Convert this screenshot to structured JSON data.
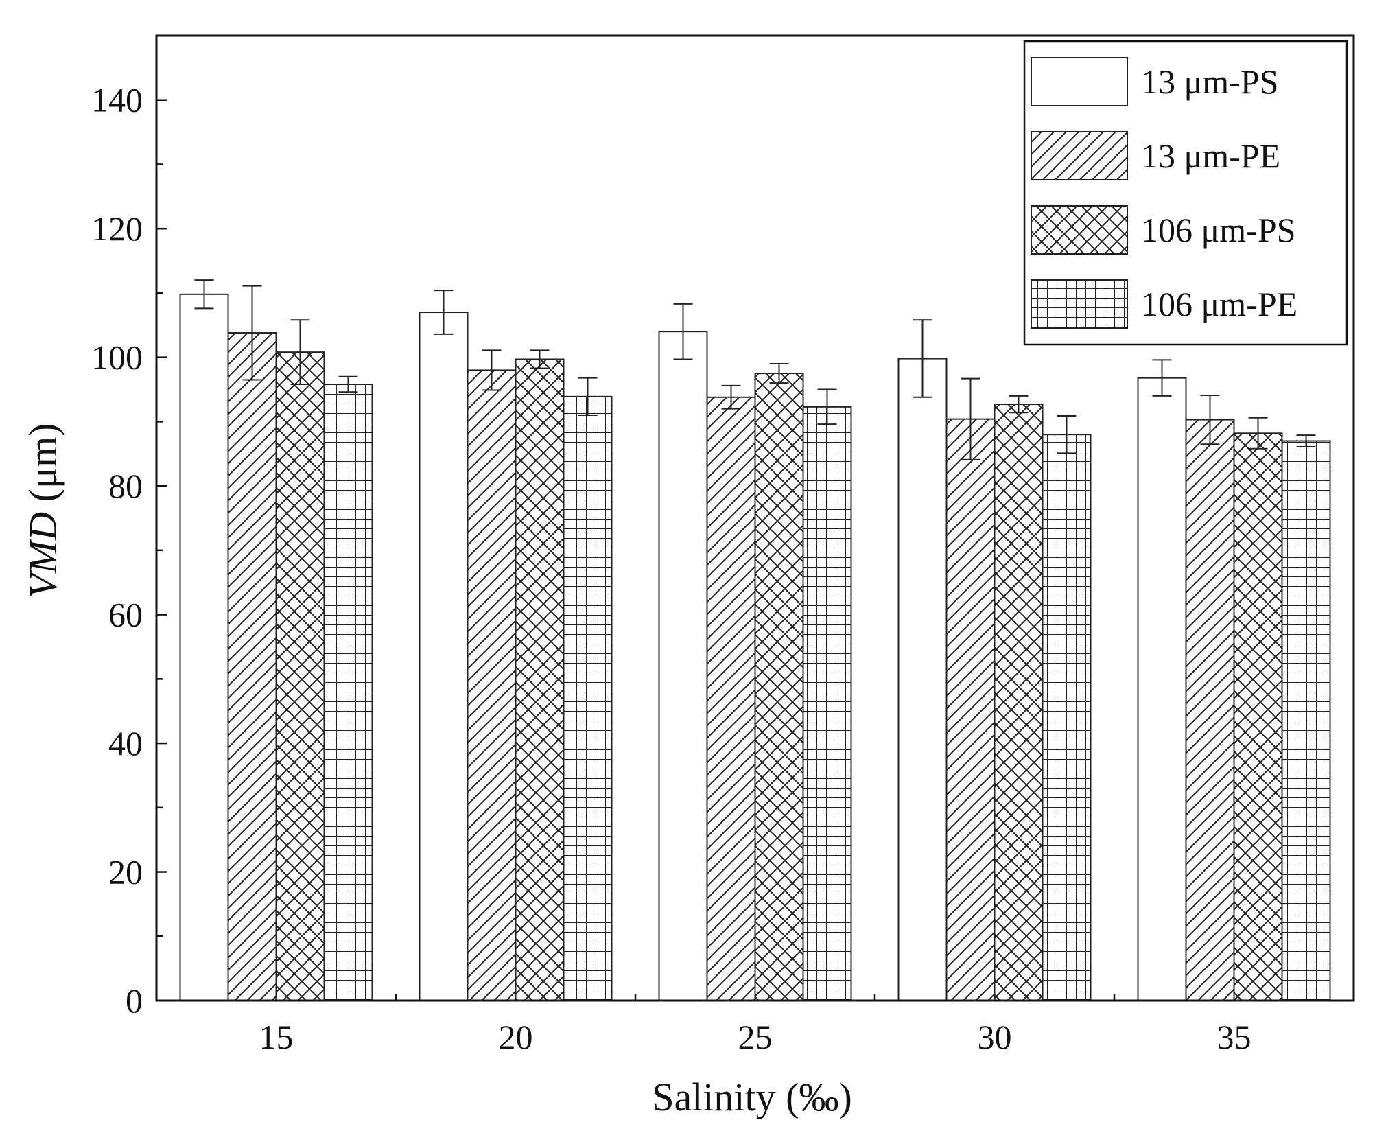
{
  "chart_data": {
    "type": "bar",
    "title": "",
    "xlabel": "Salinity (‰)",
    "ylabel_main": "VMD",
    "ylabel_unit": " (μm)",
    "categories": [
      "15",
      "20",
      "25",
      "30",
      "35"
    ],
    "ylim": [
      0,
      150
    ],
    "yticks": [
      0,
      20,
      40,
      60,
      80,
      100,
      120,
      140
    ],
    "grid": false,
    "legend_position": "top-right",
    "series": [
      {
        "name": "13 μm-PS",
        "pattern": "none",
        "values": [
          109.8,
          107.0,
          104.0,
          99.8,
          96.8
        ],
        "errors": [
          2.2,
          3.4,
          4.3,
          6.0,
          2.8
        ]
      },
      {
        "name": "13 μm-PE",
        "pattern": "diagonal",
        "values": [
          103.8,
          98.0,
          93.8,
          90.4,
          90.3
        ],
        "errors": [
          7.3,
          3.1,
          1.8,
          6.3,
          3.8
        ]
      },
      {
        "name": "106 μm-PS",
        "pattern": "crosshatch",
        "values": [
          100.8,
          99.7,
          97.5,
          92.7,
          88.2
        ],
        "errors": [
          5.0,
          1.4,
          1.5,
          1.3,
          2.4
        ]
      },
      {
        "name": "106 μm-PE",
        "pattern": "grid",
        "values": [
          95.8,
          93.9,
          92.3,
          88.0,
          87.0
        ],
        "errors": [
          1.2,
          2.9,
          2.7,
          2.9,
          0.9
        ]
      }
    ]
  }
}
